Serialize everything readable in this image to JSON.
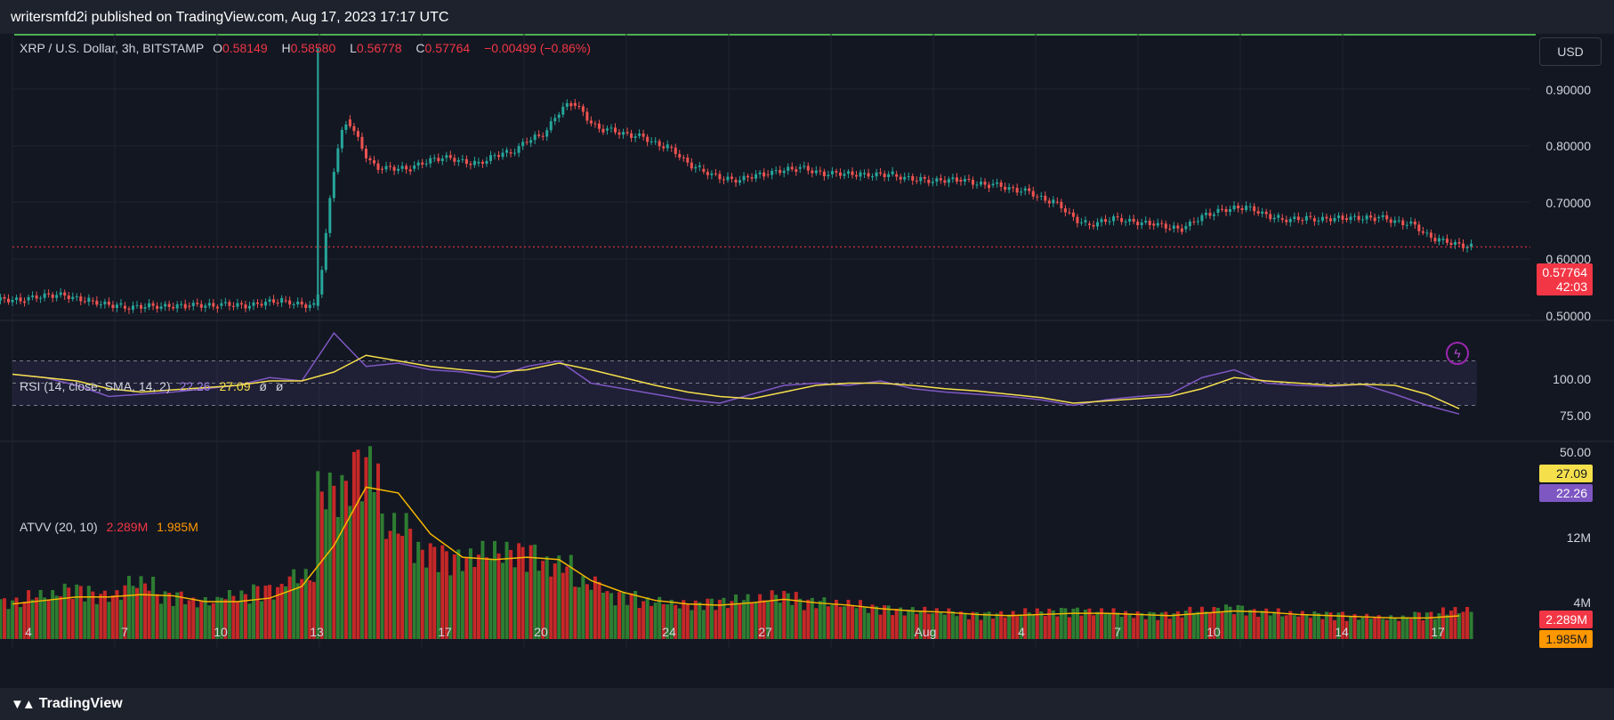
{
  "publisher_line": "writersmfd2i published on TradingView.com, Aug 17, 2023 17:17 UTC",
  "currency_button": "USD",
  "symbol": {
    "title": "XRP / U.S. Dollar, 3h, BITSTAMP",
    "o_label": "O",
    "o": "0.58149",
    "h_label": "H",
    "h": "0.58580",
    "l_label": "L",
    "l": "0.56778",
    "c_label": "C",
    "c": "0.57764",
    "change": "−0.00499 (−0.86%)"
  },
  "price_axis": [
    "0.90000",
    "0.80000",
    "0.70000",
    "0.60000",
    "0.50000"
  ],
  "last_price": {
    "value": "0.57764",
    "countdown": "42:03"
  },
  "rsi": {
    "title": "RSI (14, close, SMA, 14, 2)",
    "value": "22.26",
    "sma": "27.09",
    "extra1": "ø",
    "extra2": "ø",
    "axis": [
      "100.00",
      "75.00",
      "50.00"
    ]
  },
  "atvv": {
    "title": "ATVV (20, 10)",
    "value": "2.289M",
    "ma": "1.985M",
    "axis": [
      "12M",
      "4M"
    ]
  },
  "x_axis": [
    "4",
    "7",
    "10",
    "13",
    "17",
    "20",
    "24",
    "27",
    "Aug",
    "4",
    "7",
    "10",
    "14",
    "17"
  ],
  "footer_brand": "TradingView",
  "colors": {
    "up": "#26a69a",
    "down": "#ef5350",
    "rsi_line": "#7e57c2",
    "rsi_sma": "#f5e04c",
    "vol_up": "#2e7d32",
    "vol_down": "#c62828",
    "vol_ma": "#f5b700",
    "bg": "#131722"
  },
  "chart_data": {
    "type": "candlestick",
    "series": [
      {
        "name": "XRP / U.S. Dollar",
        "x": [
          "4",
          "5",
          "6",
          "7",
          "8",
          "9",
          "10",
          "11",
          "12",
          "13",
          "13",
          "14",
          "15",
          "16",
          "17",
          "18",
          "19",
          "20",
          "21",
          "22",
          "23",
          "24",
          "25",
          "26",
          "27",
          "28",
          "29",
          "30",
          "31",
          "Aug",
          "2",
          "3",
          "4",
          "5",
          "6",
          "7",
          "8",
          "9",
          "10",
          "11",
          "12",
          "13",
          "14",
          "15",
          "16",
          "17"
        ],
        "close": [
          0.48,
          0.49,
          0.48,
          0.47,
          0.47,
          0.47,
          0.47,
          0.47,
          0.48,
          0.47,
          0.81,
          0.72,
          0.72,
          0.74,
          0.73,
          0.75,
          0.78,
          0.84,
          0.79,
          0.78,
          0.76,
          0.72,
          0.7,
          0.71,
          0.72,
          0.71,
          0.71,
          0.71,
          0.7,
          0.7,
          0.69,
          0.68,
          0.66,
          0.62,
          0.63,
          0.62,
          0.61,
          0.64,
          0.65,
          0.63,
          0.63,
          0.63,
          0.63,
          0.62,
          0.59,
          0.578
        ]
      },
      {
        "name": "RSI",
        "values": [
          58,
          55,
          48,
          38,
          40,
          42,
          45,
          48,
          55,
          52,
          95,
          65,
          68,
          62,
          60,
          55,
          65,
          70,
          50,
          45,
          40,
          35,
          32,
          40,
          48,
          50,
          48,
          52,
          45,
          42,
          40,
          38,
          35,
          30,
          35,
          38,
          40,
          55,
          62,
          50,
          48,
          47,
          49,
          40,
          30,
          22.26
        ]
      },
      {
        "name": "RSI SMA",
        "values": [
          58,
          55,
          52,
          45,
          42,
          44,
          46,
          48,
          52,
          52,
          60,
          75,
          70,
          65,
          62,
          60,
          62,
          68,
          62,
          55,
          48,
          42,
          38,
          36,
          42,
          48,
          50,
          50,
          48,
          45,
          43,
          40,
          37,
          32,
          34,
          36,
          38,
          45,
          55,
          52,
          50,
          48,
          49,
          48,
          40,
          27.09
        ]
      }
    ],
    "volume": [
      3,
      3.5,
      4,
      3.5,
      4.5,
      3.5,
      3,
      3.5,
      4,
      5,
      12,
      14,
      9,
      7,
      6.5,
      7,
      7,
      6,
      4.5,
      3.5,
      3,
      2.8,
      3,
      3.2,
      3.5,
      3,
      2.8,
      2.5,
      2.3,
      2.2,
      2,
      2,
      2.2,
      2.3,
      2.2,
      2,
      2,
      2.3,
      2.5,
      2.2,
      2,
      2,
      1.8,
      1.7,
      2,
      2.289
    ],
    "volume_ma": [
      3,
      3.3,
      3.6,
      3.6,
      3.8,
      3.7,
      3.2,
      3.2,
      3.5,
      4.5,
      8,
      13,
      12.5,
      9,
      7,
      6.8,
      7,
      6.8,
      5,
      4,
      3.3,
      3,
      2.9,
      3.1,
      3.4,
      3.1,
      2.9,
      2.6,
      2.4,
      2.3,
      2.1,
      2,
      2.1,
      2.2,
      2.2,
      2.1,
      2,
      2.2,
      2.4,
      2.3,
      2.1,
      2,
      1.9,
      1.8,
      1.8,
      1.985
    ],
    "ylim_price": [
      0.45,
      0.95
    ],
    "ylim_rsi": [
      0,
      100
    ],
    "ylim_volume": [
      0,
      16
    ]
  }
}
